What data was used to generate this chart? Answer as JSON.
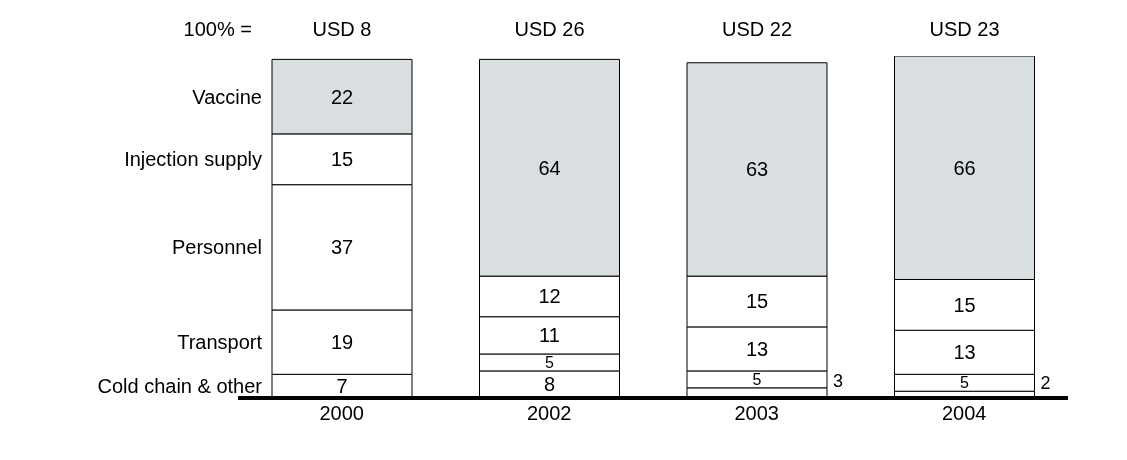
{
  "chart_data": {
    "type": "bar",
    "stacked": true,
    "data_labels": true,
    "categories": [
      "2000",
      "2002",
      "2003",
      "2004"
    ],
    "series": [
      {
        "name": "Cold chain & other",
        "color": "#ffffff",
        "values": [
          7,
          8,
          3,
          2
        ]
      },
      {
        "name": "Transport",
        "color": "#ffffff",
        "values": [
          19,
          5,
          5,
          5
        ]
      },
      {
        "name": "Personnel",
        "color": "#ffffff",
        "values": [
          37,
          11,
          13,
          13
        ]
      },
      {
        "name": "Injection supply",
        "color": "#ffffff",
        "values": [
          15,
          12,
          15,
          15
        ]
      },
      {
        "name": "Vaccine",
        "color": "#d9dfe0",
        "values": [
          22,
          64,
          63,
          66
        ]
      }
    ],
    "totals": [
      "USD 8",
      "USD 26",
      "USD 22",
      "USD 23"
    ],
    "annotations": [
      "100% ="
    ]
  }
}
